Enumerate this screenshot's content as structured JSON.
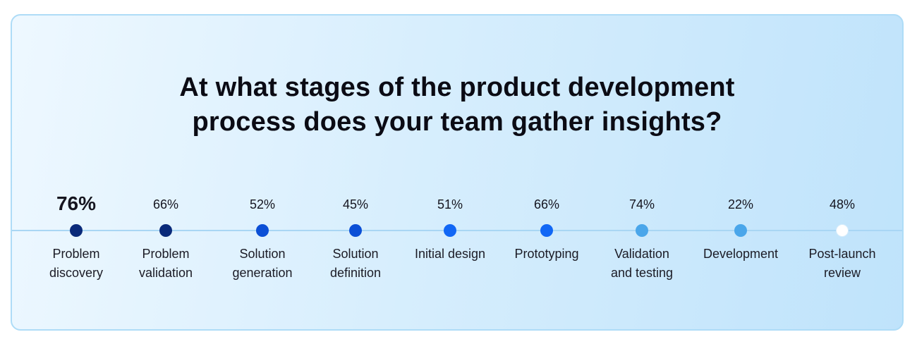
{
  "chart_data": {
    "type": "timeline",
    "title": "At what stages of the product development process does your team gather insights?",
    "title_lines": [
      "At what stages of the product development",
      "process does your team gather insights?"
    ],
    "unit": "%",
    "highlight": "Problem discovery",
    "stages": [
      {
        "label_lines": [
          "Problem",
          "discovery"
        ],
        "value": 76,
        "display": "76%",
        "highlight": true,
        "color": "#0a2a7a"
      },
      {
        "label_lines": [
          "Problem",
          "validation"
        ],
        "value": 66,
        "display": "66%",
        "highlight": false,
        "color": "#0a2a7a"
      },
      {
        "label_lines": [
          "Solution",
          "generation"
        ],
        "value": 52,
        "display": "52%",
        "highlight": false,
        "color": "#0b4fd6"
      },
      {
        "label_lines": [
          "Solution",
          "definition"
        ],
        "value": 45,
        "display": "45%",
        "highlight": false,
        "color": "#0b4fd6"
      },
      {
        "label_lines": [
          "Initial design"
        ],
        "value": 51,
        "display": "51%",
        "highlight": false,
        "color": "#1167f5"
      },
      {
        "label_lines": [
          "Prototyping"
        ],
        "value": 66,
        "display": "66%",
        "highlight": false,
        "color": "#1167f5"
      },
      {
        "label_lines": [
          "Validation",
          "and testing"
        ],
        "value": 74,
        "display": "74%",
        "highlight": false,
        "color": "#4aa6ea"
      },
      {
        "label_lines": [
          "Development"
        ],
        "value": 22,
        "display": "22%",
        "highlight": false,
        "color": "#4aa6ea"
      },
      {
        "label_lines": [
          "Post-launch",
          "review"
        ],
        "value": 48,
        "display": "48%",
        "highlight": false,
        "color": "#ffffff"
      }
    ]
  }
}
